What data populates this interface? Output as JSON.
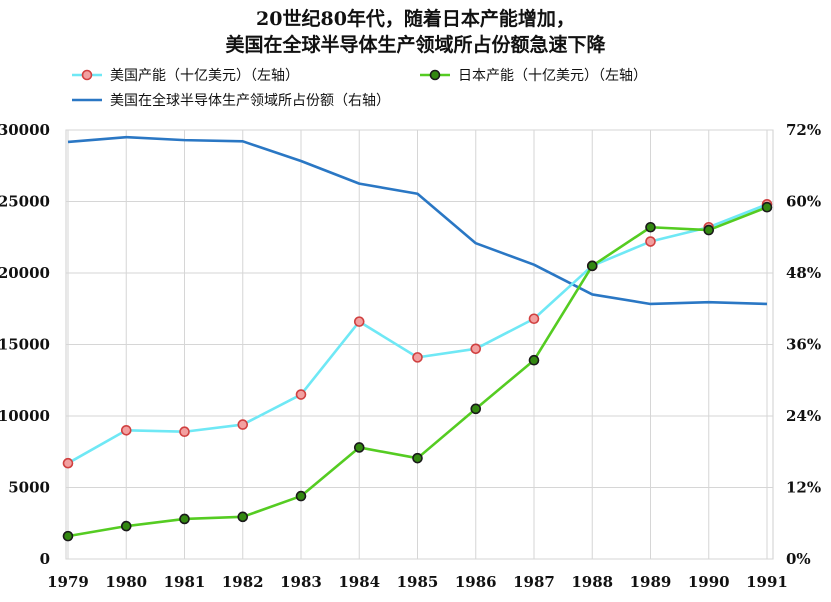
{
  "title_line1": "20世纪80年代，随着日本产能增加，",
  "title_line2": "美国在全球半导体生产领域所占份额急速下降",
  "chart_data": {
    "type": "line",
    "x": [
      1979,
      1980,
      1981,
      1982,
      1983,
      1984,
      1985,
      1986,
      1987,
      1988,
      1989,
      1990,
      1991
    ],
    "series": [
      {
        "name": "美国产能（十亿美元）（左轴）",
        "axis": "left",
        "color": "#6fe8f5",
        "marker_color": "#f2a0a0",
        "marker_edge": "#d04040",
        "values": [
          6700,
          9000,
          8900,
          9400,
          11500,
          16600,
          14100,
          14700,
          16800,
          20500,
          22200,
          23200,
          24800
        ]
      },
      {
        "name": "日本产能（十亿美元）（左轴）",
        "axis": "left",
        "color": "#55cc22",
        "marker_color": "#338811",
        "marker_edge": "#1a1a1a",
        "values": [
          1600,
          2300,
          2800,
          2950,
          4400,
          7800,
          7050,
          10500,
          13900,
          20500,
          23200,
          23000,
          24600
        ]
      },
      {
        "name": "美国在全球半导体生产领域所占份额（右轴）",
        "axis": "right",
        "color": "#2a77c4",
        "values": [
          70,
          70.8,
          70.3,
          70.1,
          66.8,
          63,
          61.3,
          53,
          49.4,
          44.4,
          42.8,
          43.1,
          42.8
        ]
      }
    ],
    "left_axis": {
      "min": 0,
      "max": 30000,
      "ticks": [
        "0",
        "5000",
        "10000",
        "15000",
        "20000",
        "25000",
        "30000"
      ],
      "tick_values": [
        0,
        5000,
        10000,
        15000,
        20000,
        25000,
        30000
      ]
    },
    "right_axis": {
      "min": 0,
      "max": 72,
      "ticks": [
        "0%",
        "12%",
        "24%",
        "36%",
        "48%",
        "60%",
        "72%"
      ],
      "tick_values": [
        0,
        12,
        24,
        36,
        48,
        60,
        72
      ]
    },
    "x_tick_labels": [
      "1979",
      "1980",
      "1981",
      "1982",
      "1983",
      "1984",
      "1985",
      "1986",
      "1987",
      "1988",
      "1989",
      "1990",
      "1991"
    ],
    "grid": true,
    "legend_position": "top"
  }
}
